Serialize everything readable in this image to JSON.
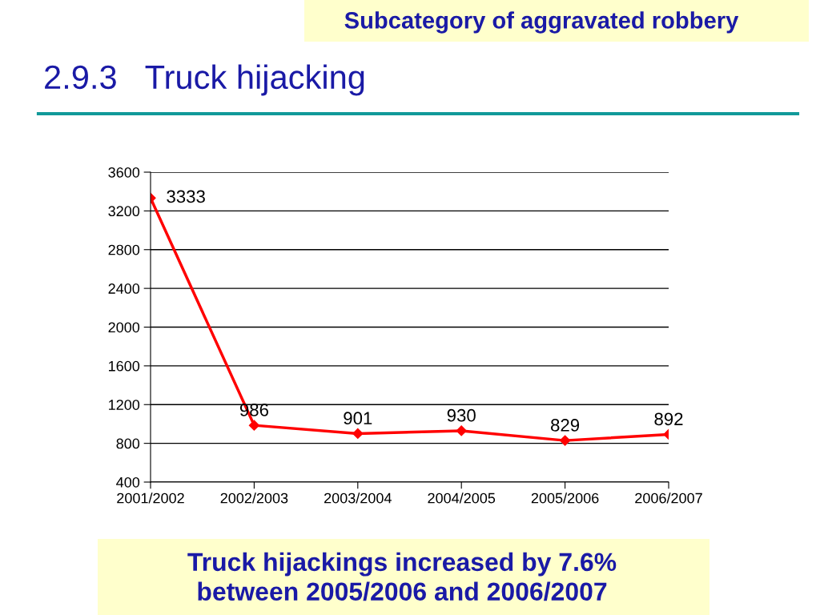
{
  "chart_data": {
    "type": "line",
    "title": "2.9.3   Truck hijacking",
    "subtitle": "Subcategory of aggravated robbery",
    "categories": [
      "2001/2002",
      "2002/2003",
      "2003/2004",
      "2004/2005",
      "2005/2006",
      "2006/2007"
    ],
    "series": [
      {
        "color": "#ff0000",
        "values": [
          3333,
          986,
          901,
          930,
          829,
          892
        ]
      }
    ],
    "ylim": [
      400,
      3600
    ],
    "yticks": [
      400,
      800,
      1200,
      1600,
      2000,
      2400,
      2800,
      3200,
      3600
    ],
    "grid": "y",
    "marker": "diamond",
    "line_style": "solid",
    "data_labels": true,
    "legend": false,
    "annotations": [
      "Truck hijackings increased by 7.6%\nbetween 2005/2006 and 2006/2007"
    ]
  }
}
